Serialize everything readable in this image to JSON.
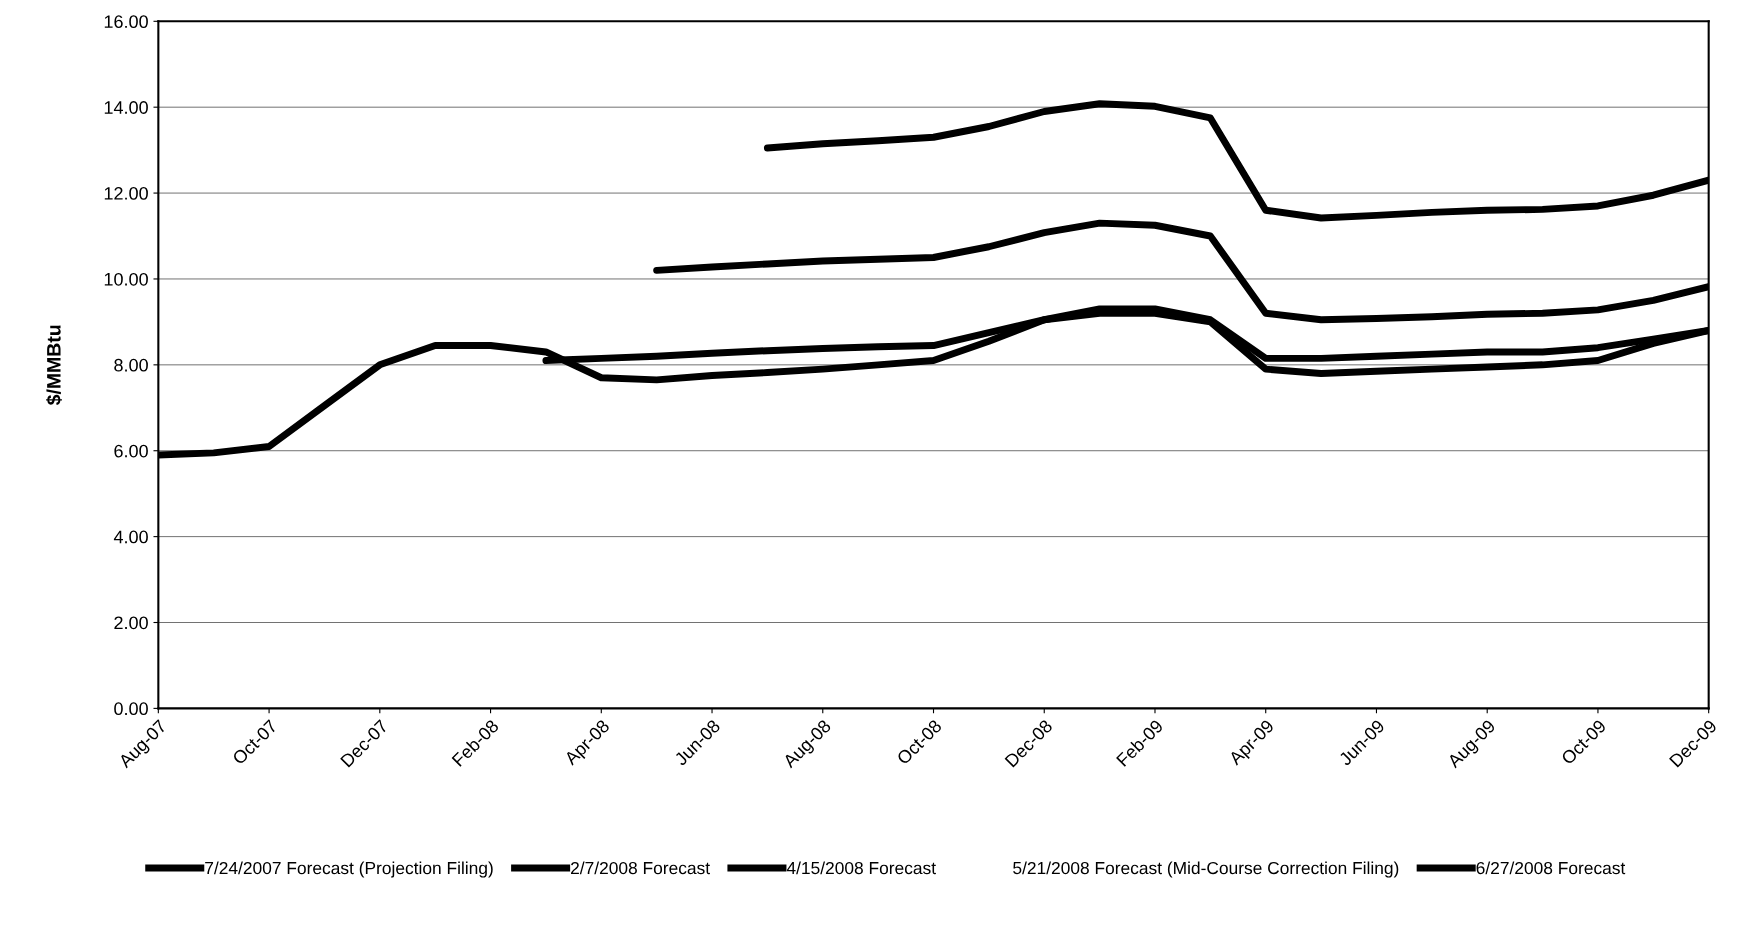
{
  "chart_data": {
    "type": "line",
    "ylabel": "$/MMBtu",
    "categories": [
      "Aug-07",
      null,
      "Oct-07",
      null,
      "Dec-07",
      null,
      "Feb-08",
      null,
      "Apr-08",
      null,
      "Jun-08",
      null,
      "Aug-08",
      null,
      "Oct-08",
      null,
      "Dec-08",
      null,
      "Feb-09",
      null,
      "Apr-09",
      null,
      "Jun-09",
      null,
      "Aug-09",
      null,
      "Oct-09",
      null,
      "Dec-09"
    ],
    "series": [
      {
        "name": "7/24/2007 Forecast (Projection Filing)",
        "color": "#000000",
        "values": [
          5.9,
          5.95,
          6.1,
          7.05,
          8.0,
          8.45,
          8.45,
          8.3,
          7.7,
          7.65,
          7.75,
          7.82,
          7.9,
          8.0,
          8.1,
          8.55,
          9.05,
          9.2,
          9.2,
          9.0,
          7.9,
          7.8,
          7.85,
          7.9,
          7.95,
          8.0,
          8.1,
          8.5,
          8.8
        ]
      },
      {
        "name": "2/7/2008 Forecast",
        "color": "#000000",
        "values": [
          null,
          null,
          null,
          null,
          null,
          null,
          null,
          8.1,
          8.15,
          8.2,
          8.27,
          8.33,
          8.38,
          8.42,
          8.45,
          8.75,
          9.05,
          9.3,
          9.3,
          9.05,
          8.15,
          8.15,
          8.2,
          8.25,
          8.3,
          8.3,
          8.4,
          8.6,
          8.8
        ]
      },
      {
        "name": "4/15/2008 Forecast",
        "color": "#000000",
        "values": [
          null,
          null,
          null,
          null,
          null,
          null,
          null,
          null,
          null,
          10.2,
          10.28,
          10.35,
          10.42,
          10.46,
          10.5,
          10.75,
          11.08,
          11.3,
          11.25,
          11.0,
          9.2,
          9.05,
          9.08,
          9.12,
          9.18,
          9.2,
          9.28,
          9.5,
          9.82
        ]
      },
      {
        "name": "5/21/2008 Forecast (Mid-Course Correction Filing)",
        "values": [
          null,
          null,
          null,
          null,
          null,
          null,
          null,
          null,
          null,
          null,
          null,
          null,
          null,
          null,
          null,
          null,
          null,
          null,
          null,
          null,
          null,
          null,
          null,
          null,
          null,
          null,
          null,
          null,
          null
        ]
      },
      {
        "name": "6/27/2008 Forecast",
        "color": "#000000",
        "values": [
          null,
          null,
          null,
          null,
          null,
          null,
          null,
          null,
          null,
          null,
          null,
          13.05,
          13.15,
          13.22,
          13.3,
          13.55,
          13.9,
          14.08,
          14.02,
          13.75,
          11.6,
          11.42,
          11.48,
          11.55,
          11.6,
          11.62,
          11.7,
          11.95,
          12.3
        ]
      }
    ],
    "ylim": [
      0,
      16
    ],
    "yticks": [
      {
        "value": 0,
        "label": "0.00"
      },
      {
        "value": 2,
        "label": "2.00"
      },
      {
        "value": 4,
        "label": "4.00"
      },
      {
        "value": 6,
        "label": "6.00"
      },
      {
        "value": 8,
        "label": "8.00"
      },
      {
        "value": 10,
        "label": "10.00"
      },
      {
        "value": 12,
        "label": "12.00"
      },
      {
        "value": 14,
        "label": "14.00"
      },
      {
        "value": 16,
        "label": "16.00"
      }
    ],
    "grid": "y",
    "legend": "bottom",
    "marker": "none",
    "line_style": "solid"
  }
}
